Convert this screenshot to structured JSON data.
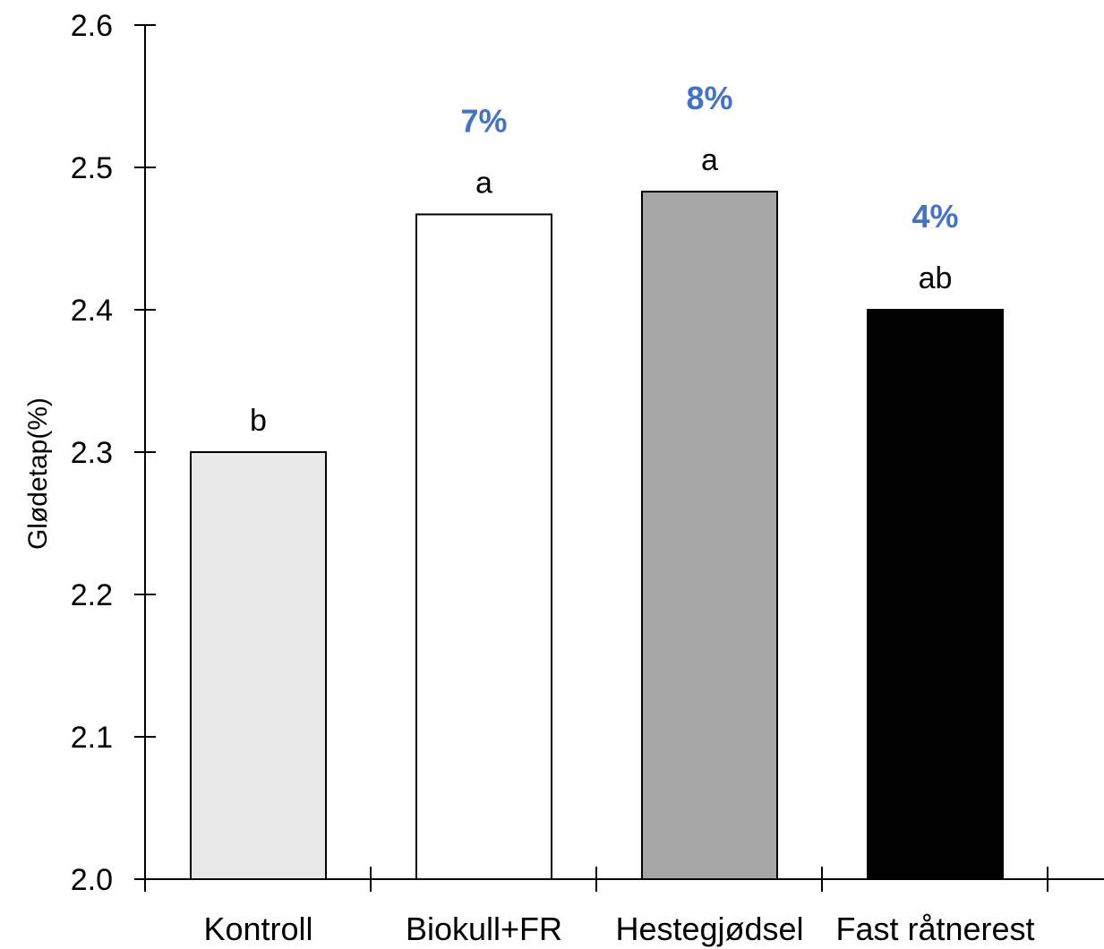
{
  "chart_data": {
    "type": "bar",
    "ylabel": "Glødetap(%)",
    "ylim": [
      2.0,
      2.6
    ],
    "yticks": [
      "2.0",
      "2.1",
      "2.2",
      "2.3",
      "2.4",
      "2.5",
      "2.6"
    ],
    "categories": [
      "Kontroll",
      "Biokull+FR",
      "Hestegjødsel",
      "Fast råtnerest"
    ],
    "values": [
      2.3,
      2.467,
      2.483,
      2.4
    ],
    "bar_colors": [
      "#e8e8e8",
      "#ffffff",
      "#a6a6a6",
      "#000000"
    ],
    "significance_letters": [
      "b",
      "a",
      "a",
      "ab"
    ],
    "percent_labels": [
      "",
      "7%",
      "8%",
      "4%"
    ],
    "percent_label_color": "#4472c4",
    "grid": false,
    "legend": "none"
  }
}
